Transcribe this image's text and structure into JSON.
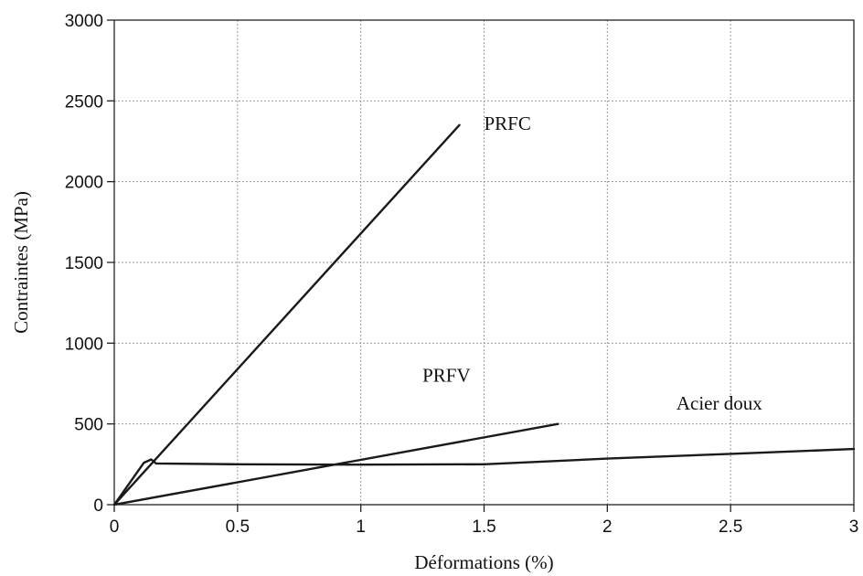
{
  "chart_data": {
    "type": "line",
    "title": "",
    "xlabel": "Déformations (%)",
    "ylabel": "Contraintes (MPa)",
    "xlim": [
      0,
      3
    ],
    "ylim": [
      0,
      3000
    ],
    "x_ticks": [
      0,
      0.5,
      1,
      1.5,
      2,
      2.5,
      3
    ],
    "x_tick_labels": [
      "0",
      "0.5",
      "1",
      "1.5",
      "2",
      "2.5",
      "3"
    ],
    "y_ticks": [
      0,
      500,
      1000,
      1500,
      2000,
      2500,
      3000
    ],
    "y_tick_labels": [
      "0",
      "500",
      "1000",
      "1500",
      "2000",
      "2500",
      "3000"
    ],
    "grid": true,
    "legend": "none",
    "series": [
      {
        "name": "PRFC",
        "x": [
          0,
          1.4
        ],
        "y": [
          0,
          2350
        ]
      },
      {
        "name": "PRFV",
        "x": [
          0,
          1.8
        ],
        "y": [
          0,
          500
        ]
      },
      {
        "name": "Acier doux",
        "x": [
          0,
          0.12,
          0.15,
          0.17,
          0.5,
          1.0,
          1.5,
          2.0,
          2.5,
          3.0
        ],
        "y": [
          0,
          260,
          280,
          255,
          250,
          248,
          250,
          285,
          315,
          345
        ]
      }
    ]
  }
}
